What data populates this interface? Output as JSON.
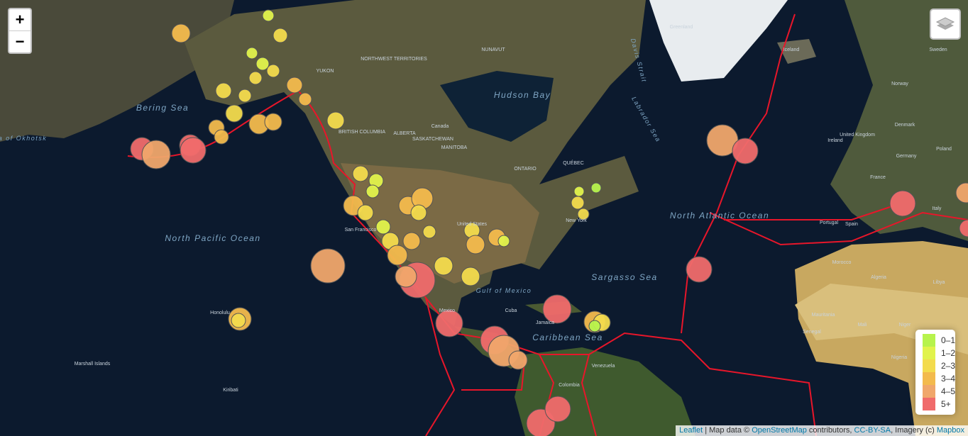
{
  "zoom": {
    "in": "+",
    "out": "−"
  },
  "map_labels": {
    "oceans": [
      "North Pacific Ocean",
      "North Atlantic Ocean",
      "Hudson Bay",
      "Bering Sea",
      "Sargasso Sea",
      "Caribbean Sea",
      "Sea of Okhotsk",
      "Labrador Sea",
      "Davis Strait",
      "Gulf of Mexico"
    ],
    "places": [
      "YUKON",
      "NORTHWEST TERRITORIES",
      "NUNAVUT",
      "BRITISH COLUMBIA",
      "ALBERTA",
      "SASKATCHEWAN",
      "MANITOBA",
      "ONTARIO",
      "QUÉBEC",
      "Canada",
      "United States",
      "Mexico",
      "Greenland",
      "Iceland",
      "Norway",
      "Sweden",
      "Denmark",
      "United Kingdom",
      "Ireland",
      "France",
      "Germany",
      "Poland",
      "Italy",
      "Spain",
      "Portugal",
      "Morocco",
      "Algeria",
      "Libya",
      "Mali",
      "Niger",
      "Nigeria",
      "Mauritania",
      "Senegal",
      "Venezuela",
      "Colombia",
      "Honolulu",
      "San Francisco",
      "New York",
      "Cuba",
      "Jamaica",
      "Kiribati",
      "Marshall Islands"
    ]
  },
  "legend": {
    "items": [
      {
        "label": "0–1",
        "color": "#b7f34d"
      },
      {
        "label": "1–2",
        "color": "#e1f34c"
      },
      {
        "label": "2–3",
        "color": "#f3db4d"
      },
      {
        "label": "3–4",
        "color": "#f3ba4d"
      },
      {
        "label": "4–5",
        "color": "#f0a76b"
      },
      {
        "label": "5+",
        "color": "#f06b6b"
      }
    ]
  },
  "attribution": {
    "leaflet": "Leaflet",
    "text1": " | Map data © ",
    "osm": "OpenStreetMap",
    "text2": " contributors, ",
    "license": "CC-BY-SA",
    "text3": ", Imagery (c) ",
    "mapbox": "Mapbox"
  }
}
